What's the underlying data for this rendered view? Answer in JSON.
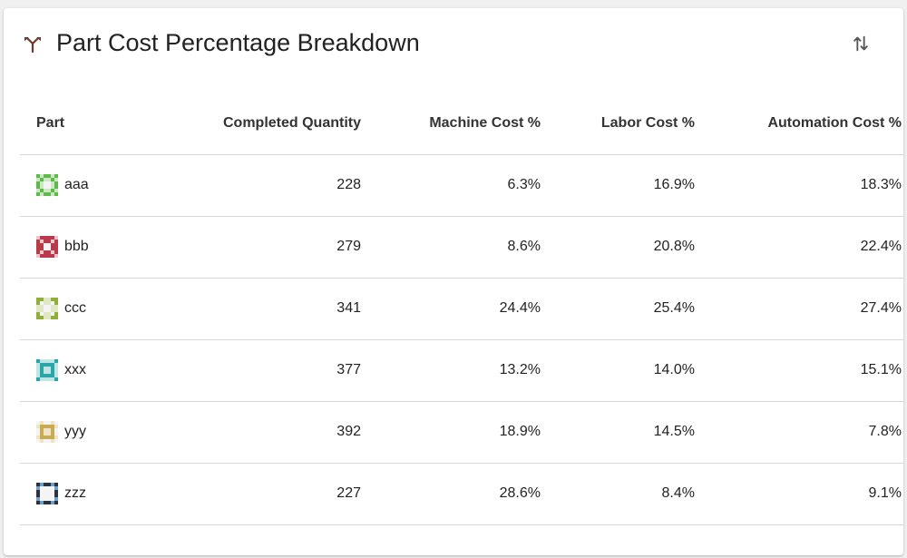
{
  "card": {
    "title": "Part Cost Percentage Breakdown",
    "header_icon": "merge-type-icon",
    "sort_icon": "swap-vertical-icon"
  },
  "table": {
    "columns": [
      "Part",
      "Completed Quantity",
      "Machine Cost %",
      "Labor Cost %",
      "Automation Cost %"
    ],
    "rows": [
      {
        "part": "aaa",
        "qty": "228",
        "machine": "6.3%",
        "labor": "16.9%",
        "automation": "18.3%",
        "icon_color": "#5fb84a",
        "icon_light": "#cde9c4"
      },
      {
        "part": "bbb",
        "qty": "279",
        "machine": "8.6%",
        "labor": "20.8%",
        "automation": "22.4%",
        "icon_color": "#b83a4b",
        "icon_light": "#efc5cb"
      },
      {
        "part": "ccc",
        "qty": "341",
        "machine": "24.4%",
        "labor": "25.4%",
        "automation": "27.4%",
        "icon_color": "#8fae3a",
        "icon_light": "#dfe8c2"
      },
      {
        "part": "xxx",
        "qty": "377",
        "machine": "13.2%",
        "labor": "14.0%",
        "automation": "15.1%",
        "icon_color": "#2aa6a8",
        "icon_light": "#bfe5e5"
      },
      {
        "part": "yyy",
        "qty": "392",
        "machine": "18.9%",
        "labor": "14.5%",
        "automation": "7.8%",
        "icon_color": "#c9aa55",
        "icon_light": "#efe4c4"
      },
      {
        "part": "zzz",
        "qty": "227",
        "machine": "28.6%",
        "labor": "8.4%",
        "automation": "9.1%",
        "icon_color": "#2b3140",
        "icon_light": "#6f9fc9"
      }
    ]
  }
}
